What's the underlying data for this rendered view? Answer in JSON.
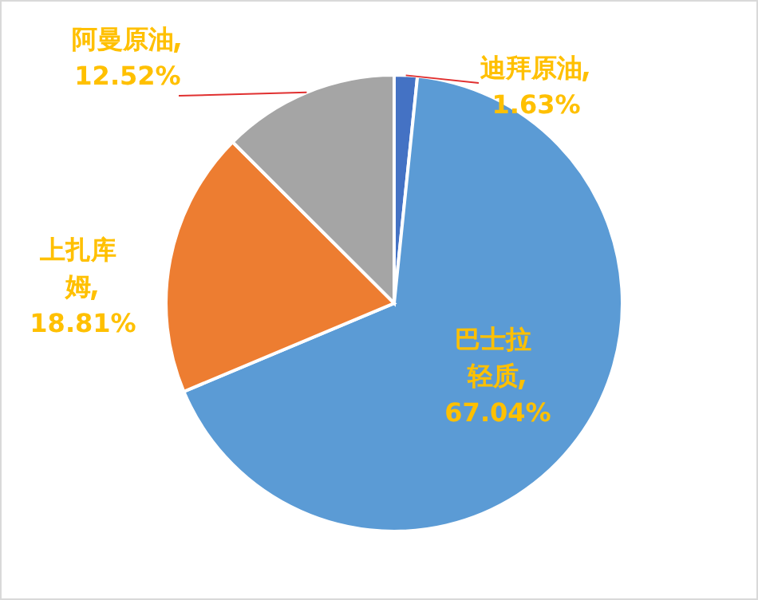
{
  "chart_data": {
    "type": "pie",
    "categories": [
      "迪拜原油",
      "巴士拉轻质",
      "上扎库姆",
      "阿曼原油"
    ],
    "values": [
      1.63,
      67.04,
      18.81,
      12.52
    ],
    "colors": [
      "#4472c4",
      "#5b9bd5",
      "#ed7d31",
      "#a5a5a5"
    ],
    "value_labels": [
      "1.63%",
      "67.04%",
      "18.81%",
      "12.52%"
    ]
  }
}
